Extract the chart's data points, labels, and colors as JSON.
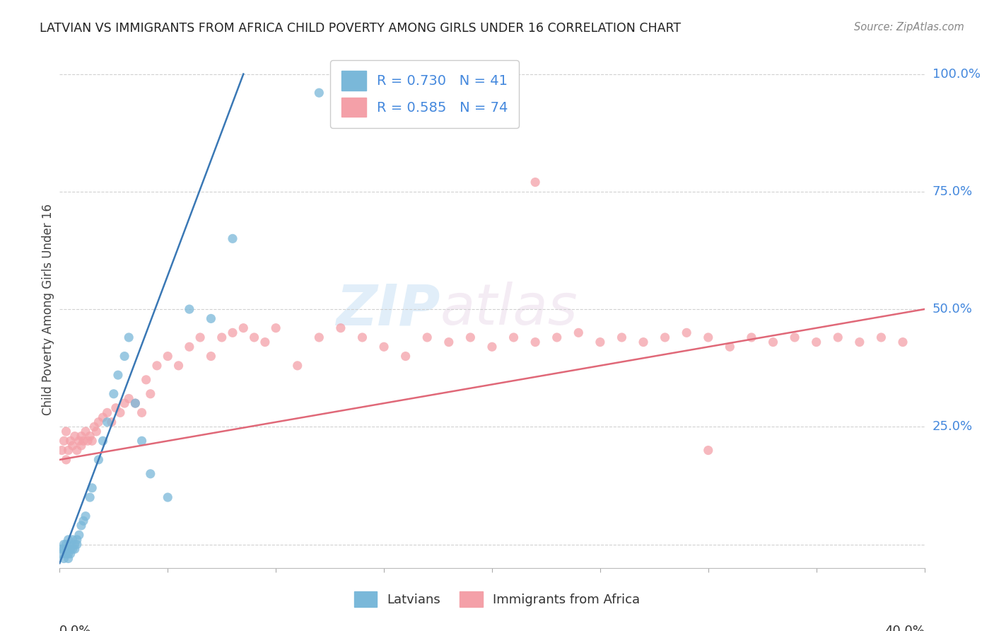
{
  "title": "LATVIAN VS IMMIGRANTS FROM AFRICA CHILD POVERTY AMONG GIRLS UNDER 16 CORRELATION CHART",
  "source": "Source: ZipAtlas.com",
  "ylabel": "Child Poverty Among Girls Under 16",
  "watermark1": "ZIP",
  "watermark2": "atlas",
  "legend_latvians": "Latvians",
  "legend_africa": "Immigrants from Africa",
  "latvian_R": "0.730",
  "latvian_N": "41",
  "africa_R": "0.585",
  "africa_N": "74",
  "latvian_color": "#7ab8d9",
  "africa_color": "#f4a0a8",
  "latvian_line_color": "#3a78b5",
  "africa_line_color": "#e06878",
  "background_color": "#ffffff",
  "xlim": [
    0.0,
    0.4
  ],
  "ylim": [
    -0.05,
    1.05
  ],
  "ytick_positions": [
    0.0,
    0.25,
    0.5,
    0.75,
    1.0
  ],
  "ytick_labels": [
    "",
    "25.0%",
    "50.0%",
    "75.0%",
    "100.0%"
  ],
  "latvian_line_x0": 0.0,
  "latvian_line_y0": -0.04,
  "latvian_line_x1": 0.085,
  "latvian_line_y1": 1.0,
  "africa_line_x0": 0.0,
  "africa_line_y0": 0.18,
  "africa_line_x1": 0.4,
  "africa_line_y1": 0.5,
  "lat_x": [
    0.001,
    0.001,
    0.002,
    0.002,
    0.002,
    0.003,
    0.003,
    0.003,
    0.004,
    0.004,
    0.004,
    0.005,
    0.005,
    0.005,
    0.006,
    0.006,
    0.007,
    0.007,
    0.008,
    0.008,
    0.009,
    0.01,
    0.011,
    0.012,
    0.014,
    0.015,
    0.018,
    0.02,
    0.022,
    0.025,
    0.027,
    0.03,
    0.032,
    0.035,
    0.038,
    0.042,
    0.05,
    0.06,
    0.07,
    0.08,
    0.12
  ],
  "lat_y": [
    -0.01,
    -0.02,
    -0.03,
    0.0,
    -0.01,
    -0.02,
    0.0,
    -0.01,
    -0.02,
    0.01,
    -0.03,
    -0.01,
    0.0,
    -0.02,
    -0.01,
    0.01,
    0.0,
    -0.01,
    0.0,
    0.01,
    0.02,
    0.04,
    0.05,
    0.06,
    0.1,
    0.12,
    0.18,
    0.22,
    0.26,
    0.32,
    0.36,
    0.4,
    0.44,
    0.3,
    0.22,
    0.15,
    0.1,
    0.5,
    0.48,
    0.65,
    0.96
  ],
  "afr_x": [
    0.001,
    0.002,
    0.003,
    0.003,
    0.004,
    0.005,
    0.006,
    0.007,
    0.008,
    0.009,
    0.01,
    0.01,
    0.011,
    0.012,
    0.013,
    0.014,
    0.015,
    0.016,
    0.017,
    0.018,
    0.02,
    0.022,
    0.024,
    0.026,
    0.028,
    0.03,
    0.032,
    0.035,
    0.038,
    0.04,
    0.042,
    0.045,
    0.05,
    0.055,
    0.06,
    0.065,
    0.07,
    0.075,
    0.08,
    0.085,
    0.09,
    0.095,
    0.1,
    0.11,
    0.12,
    0.13,
    0.14,
    0.15,
    0.16,
    0.17,
    0.18,
    0.19,
    0.2,
    0.21,
    0.22,
    0.23,
    0.24,
    0.25,
    0.26,
    0.27,
    0.28,
    0.29,
    0.3,
    0.31,
    0.32,
    0.33,
    0.34,
    0.35,
    0.36,
    0.37,
    0.38,
    0.39,
    0.22,
    0.3
  ],
  "afr_y": [
    0.2,
    0.22,
    0.18,
    0.24,
    0.2,
    0.22,
    0.21,
    0.23,
    0.2,
    0.22,
    0.23,
    0.21,
    0.22,
    0.24,
    0.22,
    0.23,
    0.22,
    0.25,
    0.24,
    0.26,
    0.27,
    0.28,
    0.26,
    0.29,
    0.28,
    0.3,
    0.31,
    0.3,
    0.28,
    0.35,
    0.32,
    0.38,
    0.4,
    0.38,
    0.42,
    0.44,
    0.4,
    0.44,
    0.45,
    0.46,
    0.44,
    0.43,
    0.46,
    0.38,
    0.44,
    0.46,
    0.44,
    0.42,
    0.4,
    0.44,
    0.43,
    0.44,
    0.42,
    0.44,
    0.43,
    0.44,
    0.45,
    0.43,
    0.44,
    0.43,
    0.44,
    0.45,
    0.44,
    0.42,
    0.44,
    0.43,
    0.44,
    0.43,
    0.44,
    0.43,
    0.44,
    0.43,
    0.77,
    0.2
  ]
}
